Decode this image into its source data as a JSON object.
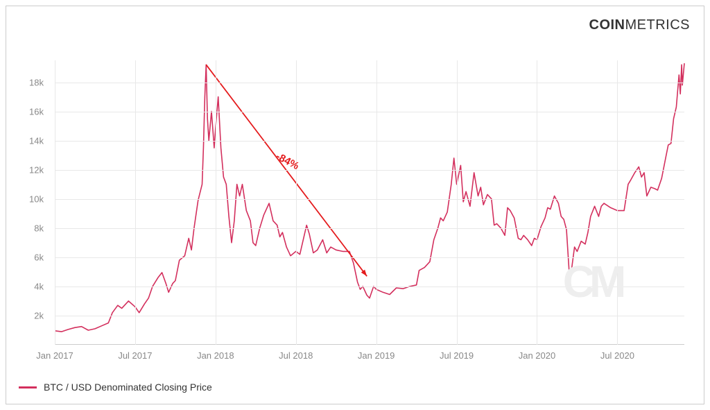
{
  "brand": {
    "bold": "COIN",
    "light": "METRICS"
  },
  "chart": {
    "type": "line",
    "series_name": "BTC / USD Denominated Closing Price",
    "line_color": "#d32f5d",
    "line_width": 1.6,
    "background_color": "#ffffff",
    "grid_color": "#e8e8e8",
    "border_color": "#cccccc",
    "axis_label_color": "#888888",
    "axis_label_fontsize": 13,
    "ylim": [
      0,
      19500
    ],
    "yticks": [
      2000,
      4000,
      6000,
      8000,
      10000,
      12000,
      14000,
      16000,
      18000
    ],
    "ytick_labels": [
      "2k",
      "4k",
      "6k",
      "8k",
      "10k",
      "12k",
      "14k",
      "16k",
      "18k"
    ],
    "x_start": "2017-01",
    "x_end": "2020-12",
    "xticks": [
      "2017-01",
      "2017-07",
      "2018-01",
      "2018-07",
      "2019-01",
      "2019-07",
      "2020-01",
      "2020-07"
    ],
    "xtick_labels": [
      "Jan 2017",
      "Jul 2017",
      "Jan 2018",
      "Jul 2018",
      "Jan 2019",
      "Jul 2019",
      "Jan 2020",
      "Jul 2020"
    ],
    "data": [
      {
        "t": "2017-01",
        "v": 960
      },
      {
        "t": "2017-01.5",
        "v": 900
      },
      {
        "t": "2017-02",
        "v": 1050
      },
      {
        "t": "2017-02.5",
        "v": 1180
      },
      {
        "t": "2017-03",
        "v": 1250
      },
      {
        "t": "2017-03.5",
        "v": 1000
      },
      {
        "t": "2017-04",
        "v": 1100
      },
      {
        "t": "2017-04.5",
        "v": 1300
      },
      {
        "t": "2017-05",
        "v": 1500
      },
      {
        "t": "2017-05.3",
        "v": 2200
      },
      {
        "t": "2017-05.7",
        "v": 2700
      },
      {
        "t": "2017-06",
        "v": 2500
      },
      {
        "t": "2017-06.5",
        "v": 3000
      },
      {
        "t": "2017-07",
        "v": 2600
      },
      {
        "t": "2017-07.3",
        "v": 2200
      },
      {
        "t": "2017-07.7",
        "v": 2800
      },
      {
        "t": "2017-08",
        "v": 3200
      },
      {
        "t": "2017-08.3",
        "v": 4000
      },
      {
        "t": "2017-08.7",
        "v": 4600
      },
      {
        "t": "2017-09",
        "v": 4950
      },
      {
        "t": "2017-09.3",
        "v": 4200
      },
      {
        "t": "2017-09.5",
        "v": 3600
      },
      {
        "t": "2017-09.8",
        "v": 4200
      },
      {
        "t": "2017-10",
        "v": 4400
      },
      {
        "t": "2017-10.3",
        "v": 5800
      },
      {
        "t": "2017-10.7",
        "v": 6100
      },
      {
        "t": "2017-11",
        "v": 7300
      },
      {
        "t": "2017-11.2",
        "v": 6500
      },
      {
        "t": "2017-11.4",
        "v": 8000
      },
      {
        "t": "2017-11.7",
        "v": 9900
      },
      {
        "t": "2017-12",
        "v": 11000
      },
      {
        "t": "2017-12.1",
        "v": 13500
      },
      {
        "t": "2017-12.2",
        "v": 17000
      },
      {
        "t": "2017-12.3",
        "v": 19200
      },
      {
        "t": "2017-12.4",
        "v": 15500
      },
      {
        "t": "2017-12.5",
        "v": 14000
      },
      {
        "t": "2017-12.7",
        "v": 16000
      },
      {
        "t": "2017-12.9",
        "v": 13500
      },
      {
        "t": "2018-01",
        "v": 14800
      },
      {
        "t": "2018-01.2",
        "v": 17000
      },
      {
        "t": "2018-01.4",
        "v": 13500
      },
      {
        "t": "2018-01.6",
        "v": 11500
      },
      {
        "t": "2018-01.8",
        "v": 11000
      },
      {
        "t": "2018-02",
        "v": 8800
      },
      {
        "t": "2018-02.2",
        "v": 7000
      },
      {
        "t": "2018-02.4",
        "v": 8500
      },
      {
        "t": "2018-02.6",
        "v": 11000
      },
      {
        "t": "2018-02.8",
        "v": 10200
      },
      {
        "t": "2018-03",
        "v": 11000
      },
      {
        "t": "2018-03.3",
        "v": 9200
      },
      {
        "t": "2018-03.6",
        "v": 8500
      },
      {
        "t": "2018-03.8",
        "v": 7000
      },
      {
        "t": "2018-04",
        "v": 6800
      },
      {
        "t": "2018-04.3",
        "v": 8000
      },
      {
        "t": "2018-04.6",
        "v": 8900
      },
      {
        "t": "2018-05",
        "v": 9700
      },
      {
        "t": "2018-05.3",
        "v": 8500
      },
      {
        "t": "2018-05.6",
        "v": 8200
      },
      {
        "t": "2018-05.8",
        "v": 7400
      },
      {
        "t": "2018-06",
        "v": 7700
      },
      {
        "t": "2018-06.3",
        "v": 6700
      },
      {
        "t": "2018-06.6",
        "v": 6100
      },
      {
        "t": "2018-07",
        "v": 6400
      },
      {
        "t": "2018-07.3",
        "v": 6200
      },
      {
        "t": "2018-07.6",
        "v": 7400
      },
      {
        "t": "2018-07.8",
        "v": 8200
      },
      {
        "t": "2018-08",
        "v": 7600
      },
      {
        "t": "2018-08.3",
        "v": 6300
      },
      {
        "t": "2018-08.6",
        "v": 6500
      },
      {
        "t": "2018-09",
        "v": 7200
      },
      {
        "t": "2018-09.3",
        "v": 6300
      },
      {
        "t": "2018-09.6",
        "v": 6700
      },
      {
        "t": "2018-10",
        "v": 6500
      },
      {
        "t": "2018-10.5",
        "v": 6400
      },
      {
        "t": "2018-11",
        "v": 6400
      },
      {
        "t": "2018-11.3",
        "v": 5600
      },
      {
        "t": "2018-11.6",
        "v": 4300
      },
      {
        "t": "2018-11.8",
        "v": 3800
      },
      {
        "t": "2018-12",
        "v": 4000
      },
      {
        "t": "2018-12.3",
        "v": 3400
      },
      {
        "t": "2018-12.5",
        "v": 3200
      },
      {
        "t": "2018-12.8",
        "v": 4000
      },
      {
        "t": "2019-01",
        "v": 3800
      },
      {
        "t": "2019-01.5",
        "v": 3600
      },
      {
        "t": "2019-02",
        "v": 3450
      },
      {
        "t": "2019-02.5",
        "v": 3900
      },
      {
        "t": "2019-03",
        "v": 3850
      },
      {
        "t": "2019-03.5",
        "v": 4000
      },
      {
        "t": "2019-04",
        "v": 4100
      },
      {
        "t": "2019-04.2",
        "v": 5100
      },
      {
        "t": "2019-04.6",
        "v": 5300
      },
      {
        "t": "2019-05",
        "v": 5700
      },
      {
        "t": "2019-05.3",
        "v": 7200
      },
      {
        "t": "2019-05.6",
        "v": 8000
      },
      {
        "t": "2019-05.8",
        "v": 8700
      },
      {
        "t": "2019-06",
        "v": 8500
      },
      {
        "t": "2019-06.3",
        "v": 9100
      },
      {
        "t": "2019-06.6",
        "v": 11000
      },
      {
        "t": "2019-06.8",
        "v": 12800
      },
      {
        "t": "2019-07",
        "v": 11000
      },
      {
        "t": "2019-07.3",
        "v": 12300
      },
      {
        "t": "2019-07.5",
        "v": 9800
      },
      {
        "t": "2019-07.7",
        "v": 10500
      },
      {
        "t": "2019-08",
        "v": 9500
      },
      {
        "t": "2019-08.3",
        "v": 11800
      },
      {
        "t": "2019-08.6",
        "v": 10200
      },
      {
        "t": "2019-08.8",
        "v": 10800
      },
      {
        "t": "2019-09",
        "v": 9600
      },
      {
        "t": "2019-09.3",
        "v": 10300
      },
      {
        "t": "2019-09.6",
        "v": 10000
      },
      {
        "t": "2019-09.8",
        "v": 8200
      },
      {
        "t": "2019-10",
        "v": 8300
      },
      {
        "t": "2019-10.3",
        "v": 8000
      },
      {
        "t": "2019-10.6",
        "v": 7500
      },
      {
        "t": "2019-10.8",
        "v": 9400
      },
      {
        "t": "2019-11",
        "v": 9200
      },
      {
        "t": "2019-11.3",
        "v": 8700
      },
      {
        "t": "2019-11.6",
        "v": 7300
      },
      {
        "t": "2019-11.8",
        "v": 7200
      },
      {
        "t": "2019-12",
        "v": 7500
      },
      {
        "t": "2019-12.3",
        "v": 7200
      },
      {
        "t": "2019-12.6",
        "v": 6800
      },
      {
        "t": "2019-12.8",
        "v": 7300
      },
      {
        "t": "2020-01",
        "v": 7200
      },
      {
        "t": "2020-01.3",
        "v": 8100
      },
      {
        "t": "2020-01.6",
        "v": 8700
      },
      {
        "t": "2020-01.8",
        "v": 9400
      },
      {
        "t": "2020-02",
        "v": 9300
      },
      {
        "t": "2020-02.3",
        "v": 10200
      },
      {
        "t": "2020-02.6",
        "v": 9700
      },
      {
        "t": "2020-02.8",
        "v": 8800
      },
      {
        "t": "2020-03",
        "v": 8600
      },
      {
        "t": "2020-03.2",
        "v": 7900
      },
      {
        "t": "2020-03.4",
        "v": 5000
      },
      {
        "t": "2020-03.6",
        "v": 5300
      },
      {
        "t": "2020-03.8",
        "v": 6700
      },
      {
        "t": "2020-04",
        "v": 6400
      },
      {
        "t": "2020-04.3",
        "v": 7100
      },
      {
        "t": "2020-04.6",
        "v": 6900
      },
      {
        "t": "2020-04.8",
        "v": 7700
      },
      {
        "t": "2020-05",
        "v": 8800
      },
      {
        "t": "2020-05.3",
        "v": 9500
      },
      {
        "t": "2020-05.6",
        "v": 8800
      },
      {
        "t": "2020-05.8",
        "v": 9500
      },
      {
        "t": "2020-06",
        "v": 9700
      },
      {
        "t": "2020-06.5",
        "v": 9400
      },
      {
        "t": "2020-07",
        "v": 9200
      },
      {
        "t": "2020-07.5",
        "v": 9200
      },
      {
        "t": "2020-07.8",
        "v": 11000
      },
      {
        "t": "2020-08",
        "v": 11300
      },
      {
        "t": "2020-08.3",
        "v": 11800
      },
      {
        "t": "2020-08.6",
        "v": 12200
      },
      {
        "t": "2020-08.8",
        "v": 11500
      },
      {
        "t": "2020-09",
        "v": 11800
      },
      {
        "t": "2020-09.2",
        "v": 10200
      },
      {
        "t": "2020-09.5",
        "v": 10800
      },
      {
        "t": "2020-09.8",
        "v": 10700
      },
      {
        "t": "2020-10",
        "v": 10600
      },
      {
        "t": "2020-10.3",
        "v": 11400
      },
      {
        "t": "2020-10.6",
        "v": 12800
      },
      {
        "t": "2020-10.8",
        "v": 13700
      },
      {
        "t": "2020-11",
        "v": 13800
      },
      {
        "t": "2020-11.2",
        "v": 15500
      },
      {
        "t": "2020-11.4",
        "v": 16300
      },
      {
        "t": "2020-11.6",
        "v": 18500
      },
      {
        "t": "2020-11.7",
        "v": 17200
      },
      {
        "t": "2020-11.8",
        "v": 19200
      },
      {
        "t": "2020-11.85",
        "v": 17800
      },
      {
        "t": "2020-12",
        "v": 19300
      }
    ],
    "annotation": {
      "text": "-84%",
      "color": "#e41a1c",
      "arrow_start": {
        "t": "2017-12.3",
        "v": 19200
      },
      "arrow_end": {
        "t": "2018-12.3",
        "v": 4700
      },
      "text_pos": {
        "t": "2018-06",
        "v": 12500
      }
    },
    "watermark": {
      "text": "CM",
      "color": "#eeeeee",
      "pos": {
        "t": "2020-05",
        "v": 4200
      }
    }
  },
  "legend": {
    "items": [
      {
        "color": "#d32f5d",
        "label": "BTC / USD Denominated Closing Price"
      }
    ]
  }
}
